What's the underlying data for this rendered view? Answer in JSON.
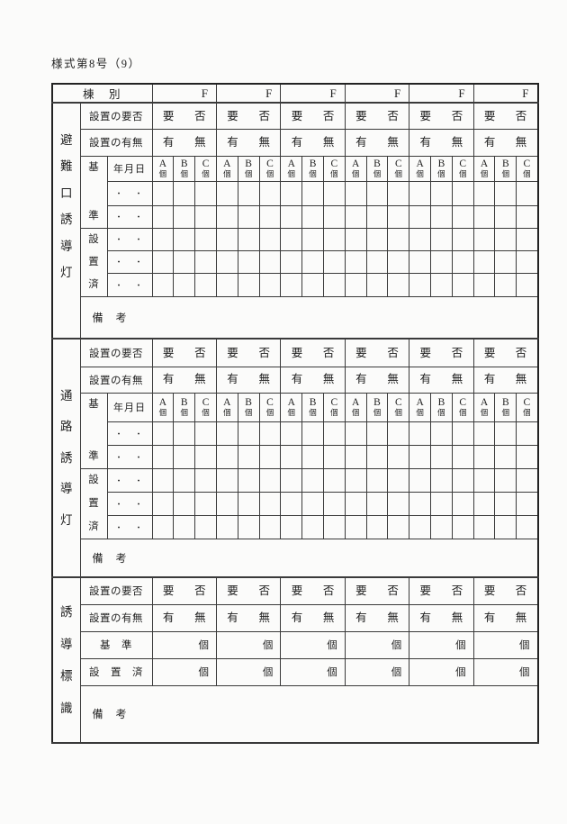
{
  "title": "様式第8号（9）",
  "colors": {
    "page_background": "#fbfbfa",
    "grid_line": "#3a3a3a",
    "grid_line_strong": "#222222",
    "text": "#1f1f1f"
  },
  "table": {
    "header": {
      "building_label": "棟　別",
      "floor_label": "F",
      "floor_count": 6
    },
    "labels": {
      "necessity": "設置の要否",
      "presence": "設置の有無",
      "required": "要",
      "not_required": "否",
      "present": "有",
      "absent": "無",
      "date": "年月日",
      "date_dots": "・　・",
      "standard_chars": [
        "基",
        "準"
      ],
      "installed_chars": [
        "設",
        "置",
        "済"
      ],
      "standard_row": "基　準",
      "installed_row": "設　置　済",
      "remarks": "備　考",
      "unit": "個",
      "sub_columns": [
        {
          "letter": "A",
          "unit": "個"
        },
        {
          "letter": "B",
          "unit": "個"
        },
        {
          "letter": "C",
          "unit": "個"
        }
      ]
    },
    "sections": [
      {
        "key": "evacuation-exit-guidance-light",
        "label": "避難口誘導灯",
        "chars": [
          "避",
          "難",
          "口",
          "誘",
          "導",
          "灯"
        ],
        "detailed": true
      },
      {
        "key": "passage-guidance-light",
        "label": "通路誘導灯",
        "chars": [
          "通",
          "路",
          "誘",
          "導",
          "灯"
        ],
        "detailed": true
      },
      {
        "key": "guidance-sign",
        "label": "誘導標識",
        "chars": [
          "誘",
          "導",
          "標",
          "識"
        ],
        "detailed": false
      }
    ]
  }
}
